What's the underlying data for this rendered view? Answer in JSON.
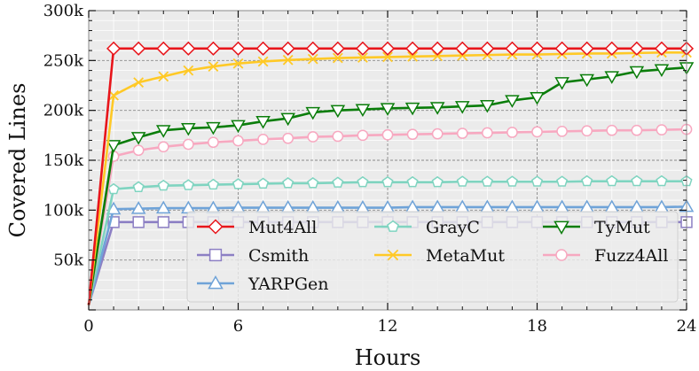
{
  "chart_data": {
    "type": "line",
    "title": "",
    "xlabel": "Hours",
    "ylabel": "Covered Lines",
    "xlim": [
      0,
      24
    ],
    "ylim": [
      0,
      300000
    ],
    "xticks": [
      0,
      6,
      12,
      18,
      24
    ],
    "xtick_labels": [
      "0",
      "6",
      "12",
      "18",
      "24"
    ],
    "yticks": [
      50000,
      100000,
      150000,
      200000,
      250000,
      300000
    ],
    "ytick_labels": [
      "50k",
      "100k",
      "150k",
      "200k",
      "250k",
      "300k"
    ],
    "grid": true,
    "legend_position": "lower-right",
    "x": [
      0,
      1,
      2,
      3,
      4,
      5,
      6,
      7,
      8,
      9,
      10,
      11,
      12,
      13,
      14,
      15,
      16,
      17,
      18,
      19,
      20,
      21,
      22,
      23,
      24
    ],
    "series": [
      {
        "name": "Mut4All",
        "color": "#e8151b",
        "marker": "diamond",
        "values": [
          5000,
          262000,
          262000,
          262000,
          262000,
          262000,
          262000,
          262000,
          262000,
          262000,
          262000,
          262000,
          262000,
          262000,
          262000,
          262000,
          262000,
          262000,
          262000,
          262000,
          262000,
          262000,
          262000,
          262000,
          262000
        ]
      },
      {
        "name": "Csmith",
        "color": "#8c7fc4",
        "marker": "square",
        "values": [
          5000,
          88000,
          88000,
          88000,
          88000,
          88000,
          88000,
          88000,
          88000,
          88000,
          88000,
          88000,
          88000,
          88000,
          88000,
          88000,
          88000,
          88000,
          88000,
          88000,
          88000,
          88000,
          88000,
          88000,
          88000
        ]
      },
      {
        "name": "YARPGen",
        "color": "#6fa3d8",
        "marker": "triangle-up",
        "values": [
          5000,
          101000,
          101500,
          102000,
          102000,
          102000,
          102500,
          102500,
          102500,
          102500,
          102500,
          102500,
          102500,
          103000,
          103000,
          103000,
          103000,
          103000,
          103000,
          103000,
          103000,
          103000,
          103000,
          103000,
          103500
        ]
      },
      {
        "name": "GrayC",
        "color": "#7fd4c0",
        "marker": "pentagon",
        "values": [
          5000,
          121000,
          123000,
          124500,
          125000,
          125500,
          126000,
          126500,
          127000,
          127000,
          127500,
          128000,
          128000,
          128000,
          128000,
          128500,
          128500,
          128500,
          128500,
          128500,
          129000,
          129000,
          129000,
          129000,
          129000
        ]
      },
      {
        "name": "MetaMut",
        "color": "#ffc926",
        "marker": "x",
        "values": [
          5000,
          215000,
          228000,
          234000,
          240000,
          244000,
          247000,
          249000,
          250500,
          251500,
          252500,
          253000,
          253500,
          254000,
          254500,
          255000,
          255500,
          256000,
          256000,
          256500,
          257000,
          257000,
          257500,
          258000,
          258000
        ]
      },
      {
        "name": "TyMut",
        "color": "#0a7d0a",
        "marker": "triangle-down",
        "values": [
          5000,
          165000,
          173000,
          180000,
          182000,
          183000,
          185000,
          189000,
          192000,
          198000,
          200000,
          201000,
          202000,
          202500,
          203000,
          204000,
          205000,
          210000,
          213000,
          228000,
          231000,
          234000,
          239000,
          241000,
          243000
        ]
      },
      {
        "name": "Fuzz4All",
        "color": "#f7a8c0",
        "marker": "circle",
        "values": [
          5000,
          154000,
          160000,
          163500,
          166000,
          168000,
          169500,
          171000,
          172000,
          173500,
          174000,
          175000,
          175500,
          176000,
          176500,
          177000,
          177500,
          178000,
          178500,
          179000,
          179500,
          180000,
          180000,
          180500,
          181000
        ]
      }
    ],
    "legend_order": [
      "Mut4All",
      "GrayC",
      "TyMut",
      "Csmith",
      "MetaMut",
      "Fuzz4All",
      "YARPGen"
    ]
  }
}
